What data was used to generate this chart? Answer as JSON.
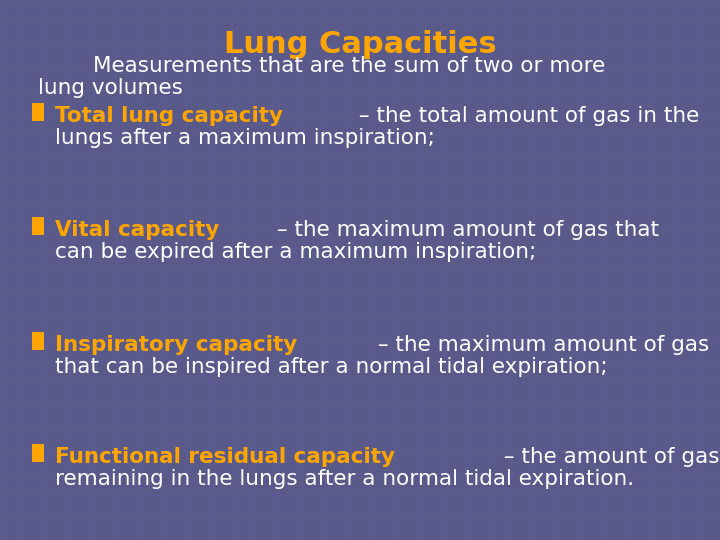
{
  "title": "Lung Capacities",
  "title_color": "#FFA500",
  "title_fontsize": 22,
  "background_color": "#5a5a8a",
  "grid_color": "#6060a0",
  "text_color": "#ffffff",
  "highlight_color": "#FFA500",
  "subtitle_line1": "        Measurements that are the sum of two or more",
  "subtitle_line2": "lung volumes",
  "items": [
    {
      "bold_text": "Total lung capacity",
      "line1_rest": " – the total amount of gas in the",
      "line2": "lungs after a maximum inspiration;"
    },
    {
      "bold_text": "Vital capacity",
      "line1_rest": " – the maximum amount of gas that",
      "line2": "can be expired after a maximum inspiration;"
    },
    {
      "bold_text": "Inspiratory capacity",
      "line1_rest": " – the maximum amount of gas",
      "line2": "that can be inspired after a normal tidal expiration;"
    },
    {
      "bold_text": "Functional residual capacity",
      "line1_rest": " – the amount of gas",
      "line2": "remaining in the lungs after a normal tidal expiration."
    }
  ],
  "figsize": [
    7.2,
    5.4
  ],
  "dpi": 100
}
